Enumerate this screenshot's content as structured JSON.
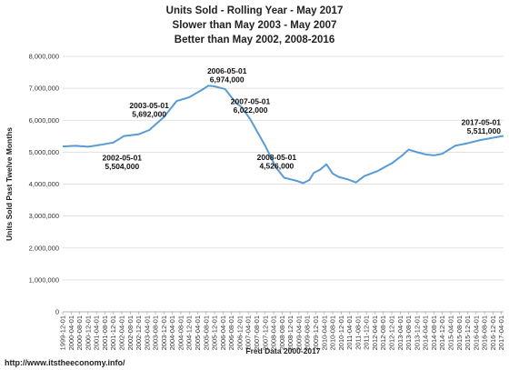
{
  "chart_data": {
    "type": "line",
    "title": "Units Sold - Rolling Year - May 2017",
    "subtitle": [
      "Slower than May 2003 - May 2007",
      "Better than May 2002, 2008-2016"
    ],
    "xlabel": "Fred Data 2000-2017",
    "ylabel": "Units Sold Past Twelve Months",
    "ylim": [
      0,
      8000000
    ],
    "yticks": [
      "0",
      "1,000,000",
      "2,000,000",
      "3,000,000",
      "4,000,000",
      "5,000,000",
      "6,000,000",
      "7,000,000",
      "8,000,000"
    ],
    "x_start": "1999-12-01",
    "x_end": "2017-05-01",
    "xtick_every_months": 4,
    "grid": true,
    "line_color": "#5b9bd5",
    "anchors": [
      [
        "1999-12-01",
        5180000
      ],
      [
        "2000-06-01",
        5200000
      ],
      [
        "2000-12-01",
        5170000
      ],
      [
        "2001-06-01",
        5230000
      ],
      [
        "2001-12-01",
        5300000
      ],
      [
        "2002-05-01",
        5504000
      ],
      [
        "2002-12-01",
        5560000
      ],
      [
        "2003-05-01",
        5692000
      ],
      [
        "2003-12-01",
        6100000
      ],
      [
        "2004-06-01",
        6600000
      ],
      [
        "2004-12-01",
        6720000
      ],
      [
        "2005-06-01",
        6950000
      ],
      [
        "2005-09-01",
        7080000
      ],
      [
        "2005-12-01",
        7060000
      ],
      [
        "2006-05-01",
        6974000
      ],
      [
        "2006-10-01",
        6550000
      ],
      [
        "2007-01-01",
        6400000
      ],
      [
        "2007-05-01",
        6022000
      ],
      [
        "2007-12-01",
        5200000
      ],
      [
        "2008-05-01",
        4526000
      ],
      [
        "2008-09-01",
        4200000
      ],
      [
        "2009-03-01",
        4100000
      ],
      [
        "2009-06-01",
        4030000
      ],
      [
        "2009-09-01",
        4130000
      ],
      [
        "2009-11-01",
        4350000
      ],
      [
        "2010-02-01",
        4450000
      ],
      [
        "2010-05-01",
        4620000
      ],
      [
        "2010-08-01",
        4330000
      ],
      [
        "2010-11-01",
        4220000
      ],
      [
        "2011-03-01",
        4150000
      ],
      [
        "2011-07-01",
        4050000
      ],
      [
        "2011-11-01",
        4250000
      ],
      [
        "2012-05-01",
        4400000
      ],
      [
        "2012-12-01",
        4650000
      ],
      [
        "2013-05-01",
        4900000
      ],
      [
        "2013-08-01",
        5080000
      ],
      [
        "2013-12-01",
        5000000
      ],
      [
        "2014-04-01",
        4930000
      ],
      [
        "2014-08-01",
        4900000
      ],
      [
        "2014-12-01",
        4950000
      ],
      [
        "2015-06-01",
        5200000
      ],
      [
        "2015-12-01",
        5280000
      ],
      [
        "2016-06-01",
        5380000
      ],
      [
        "2016-12-01",
        5450000
      ],
      [
        "2017-05-01",
        5511000
      ]
    ],
    "annotations": [
      {
        "date": "2002-05-01",
        "value": "5,504,000"
      },
      {
        "date": "2003-05-01",
        "value": "5,692,000"
      },
      {
        "date": "2006-05-01",
        "value": "6,974,000"
      },
      {
        "date": "2007-05-01",
        "value": "6,022,000"
      },
      {
        "date": "2008-05-01",
        "value": "4,526,000"
      },
      {
        "date": "2017-05-01",
        "value": "5,511,000"
      }
    ]
  },
  "footer": "http://www.itstheeconomy.info/"
}
